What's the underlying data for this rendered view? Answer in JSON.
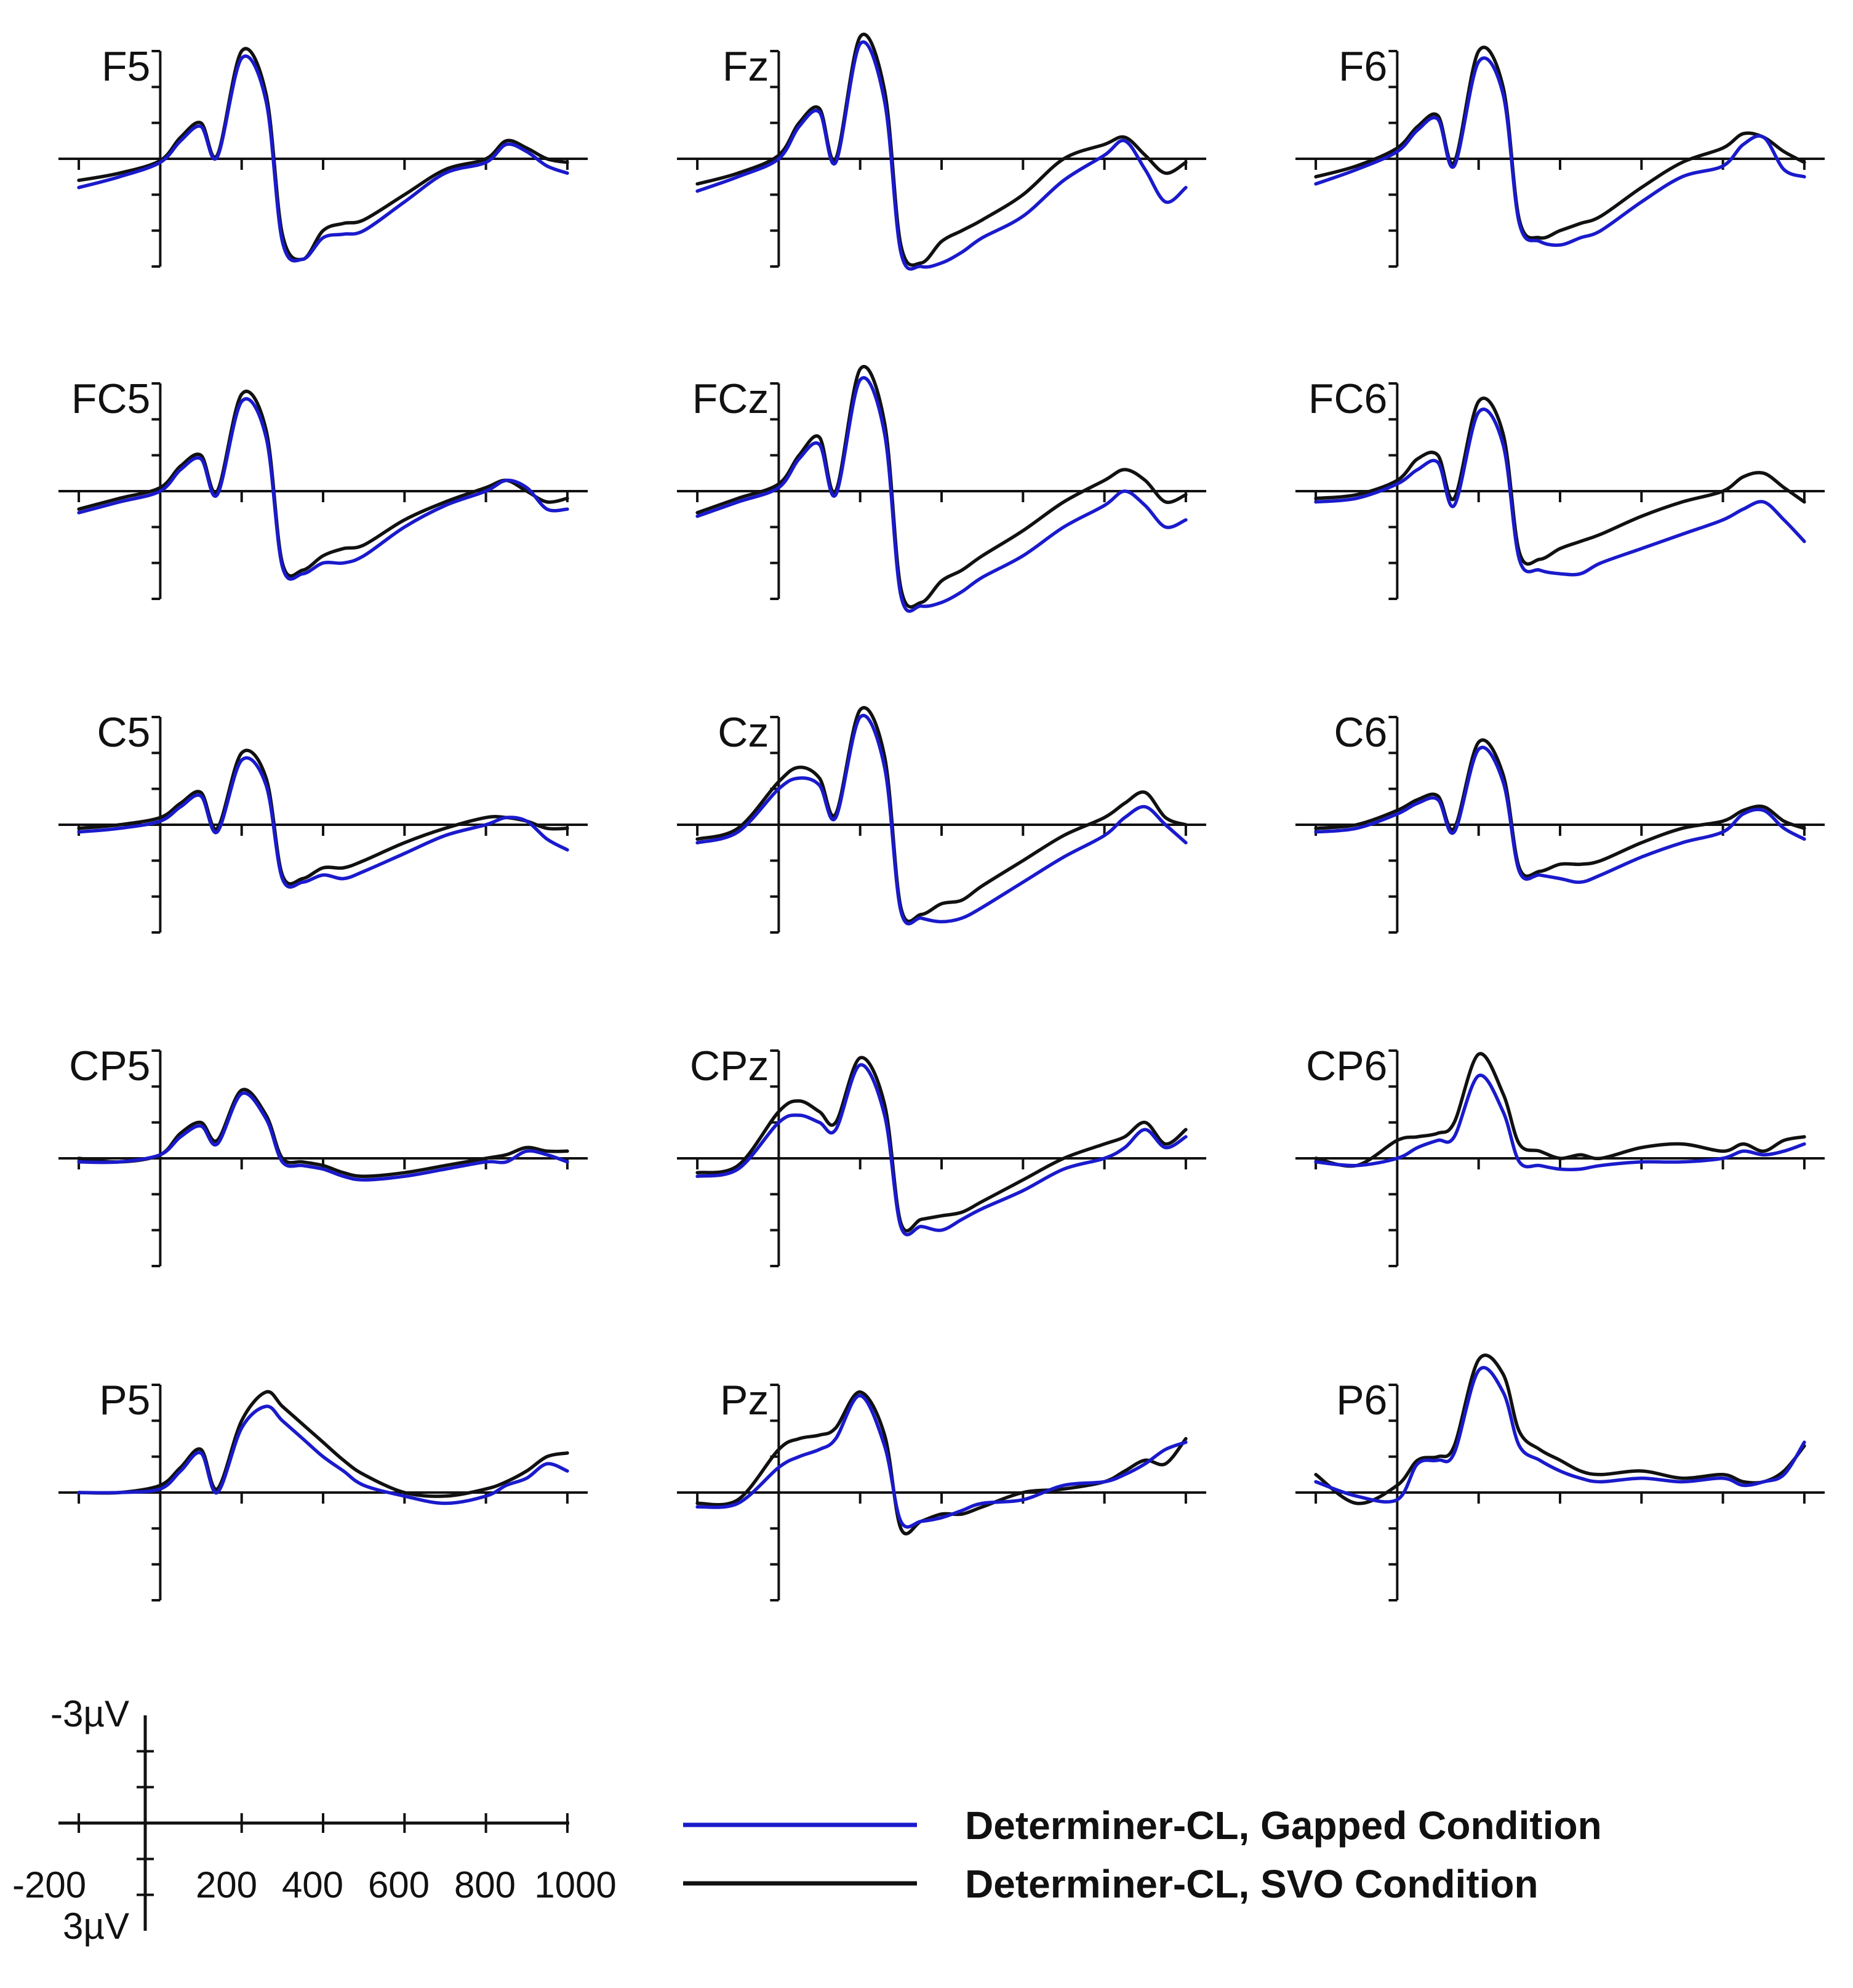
{
  "chart_data": {
    "type": "line",
    "x_unit": "ms",
    "y_unit": "µV",
    "negative_up": true,
    "xlim": [
      -250,
      1050
    ],
    "ylim": [
      -3,
      3
    ],
    "x_ticks": [
      -200,
      0,
      200,
      400,
      600,
      800,
      1000
    ],
    "scale_bar": {
      "y_top_label": "-3µV",
      "y_bottom_label": "3µV",
      "x_tick_labels": [
        "-200",
        "200",
        "400",
        "600",
        "800",
        "1000"
      ]
    },
    "legend": [
      {
        "label": "Determiner-CL, Gapped Condition",
        "color": "#1a1acc"
      },
      {
        "label": "Determiner-CL, SVO Condition",
        "color": "#111111"
      }
    ],
    "series_colors": {
      "gapped": "#1a1acc",
      "svo": "#111111"
    },
    "time": [
      -200,
      -100,
      0,
      50,
      100,
      140,
      200,
      260,
      300,
      350,
      400,
      450,
      500,
      600,
      700,
      800,
      850,
      900,
      950,
      1000
    ],
    "electrodes": [
      {
        "label": "F5",
        "gapped": [
          0.8,
          0.5,
          0.1,
          -0.5,
          -0.9,
          -0.05,
          -2.8,
          -1.6,
          2.3,
          2.8,
          2.2,
          2.1,
          2.0,
          1.2,
          0.4,
          0.1,
          -0.4,
          -0.2,
          0.2,
          0.4
        ],
        "svo": [
          0.6,
          0.4,
          0.05,
          -0.6,
          -1.0,
          -0.1,
          -3.0,
          -1.8,
          2.1,
          2.8,
          2.0,
          1.8,
          1.7,
          1.0,
          0.3,
          0.0,
          -0.5,
          -0.3,
          0.0,
          0.1
        ]
      },
      {
        "label": "Fz",
        "gapped": [
          0.9,
          0.5,
          0.0,
          -0.9,
          -1.3,
          0.1,
          -3.2,
          -1.6,
          2.6,
          3.0,
          2.9,
          2.6,
          2.2,
          1.6,
          0.6,
          -0.1,
          -0.5,
          0.3,
          1.2,
          0.8
        ],
        "svo": [
          0.7,
          0.4,
          -0.1,
          -1.0,
          -1.4,
          0.0,
          -3.4,
          -1.9,
          2.4,
          2.9,
          2.3,
          2.0,
          1.7,
          1.0,
          0.0,
          -0.4,
          -0.6,
          -0.1,
          0.4,
          0.1
        ]
      },
      {
        "label": "F6",
        "gapped": [
          0.7,
          0.3,
          -0.2,
          -0.8,
          -1.1,
          0.2,
          -2.7,
          -1.8,
          1.8,
          2.3,
          2.4,
          2.2,
          2.0,
          1.2,
          0.5,
          0.2,
          -0.4,
          -0.6,
          0.3,
          0.5
        ],
        "svo": [
          0.5,
          0.2,
          -0.3,
          -0.9,
          -1.2,
          0.1,
          -3.0,
          -2.0,
          1.7,
          2.2,
          2.0,
          1.8,
          1.6,
          0.8,
          0.1,
          -0.3,
          -0.7,
          -0.6,
          -0.2,
          0.1
        ]
      },
      {
        "label": "FC5",
        "gapped": [
          0.6,
          0.3,
          0.0,
          -0.6,
          -0.9,
          0.1,
          -2.5,
          -1.5,
          2.1,
          2.3,
          2.0,
          2.0,
          1.8,
          1.0,
          0.4,
          0.0,
          -0.3,
          -0.1,
          0.5,
          0.5
        ],
        "svo": [
          0.5,
          0.2,
          -0.1,
          -0.7,
          -1.0,
          0.0,
          -2.7,
          -1.7,
          2.0,
          2.2,
          1.8,
          1.6,
          1.5,
          0.8,
          0.3,
          -0.1,
          -0.3,
          0.0,
          0.3,
          0.2
        ]
      },
      {
        "label": "FC6",
        "gapped": [
          0.3,
          0.2,
          -0.2,
          -0.6,
          -0.8,
          0.4,
          -2.2,
          -1.3,
          1.9,
          2.2,
          2.3,
          2.3,
          2.0,
          1.6,
          1.2,
          0.8,
          0.5,
          0.3,
          0.8,
          1.4
        ],
        "svo": [
          0.2,
          0.1,
          -0.3,
          -0.9,
          -1.0,
          0.2,
          -2.5,
          -1.6,
          1.7,
          1.9,
          1.6,
          1.4,
          1.2,
          0.7,
          0.3,
          0.0,
          -0.4,
          -0.5,
          -0.1,
          0.3
        ]
      },
      {
        "label": "FCz",
        "gapped": [
          0.7,
          0.3,
          -0.1,
          -0.9,
          -1.3,
          0.1,
          -3.1,
          -1.6,
          2.9,
          3.2,
          3.1,
          2.8,
          2.4,
          1.8,
          1.0,
          0.4,
          0.0,
          0.4,
          1.0,
          0.8
        ],
        "svo": [
          0.6,
          0.2,
          -0.2,
          -1.0,
          -1.5,
          0.0,
          -3.4,
          -1.9,
          2.7,
          3.1,
          2.5,
          2.2,
          1.8,
          1.1,
          0.3,
          -0.3,
          -0.6,
          -0.3,
          0.3,
          0.1
        ]
      },
      {
        "label": "C5",
        "gapped": [
          0.2,
          0.1,
          -0.1,
          -0.5,
          -0.8,
          0.2,
          -1.8,
          -1.1,
          1.5,
          1.6,
          1.4,
          1.5,
          1.3,
          0.8,
          0.3,
          0.0,
          -0.2,
          -0.1,
          0.4,
          0.7
        ],
        "svo": [
          0.1,
          0.0,
          -0.2,
          -0.6,
          -0.9,
          0.1,
          -2.0,
          -1.3,
          1.4,
          1.5,
          1.2,
          1.2,
          1.0,
          0.5,
          0.1,
          -0.2,
          -0.2,
          -0.1,
          0.1,
          0.1
        ]
      },
      {
        "label": "C6",
        "gapped": [
          0.2,
          0.1,
          -0.3,
          -0.6,
          -0.7,
          0.2,
          -2.1,
          -1.2,
          1.3,
          1.4,
          1.5,
          1.6,
          1.4,
          0.9,
          0.5,
          0.2,
          -0.3,
          -0.4,
          0.1,
          0.4
        ],
        "svo": [
          0.1,
          0.0,
          -0.4,
          -0.7,
          -0.8,
          0.1,
          -2.3,
          -1.4,
          1.2,
          1.3,
          1.1,
          1.1,
          1.0,
          0.5,
          0.1,
          -0.1,
          -0.4,
          -0.5,
          -0.1,
          0.1
        ]
      },
      {
        "label": "Cz",
        "gapped": [
          0.5,
          0.2,
          -1.0,
          -1.3,
          -1.1,
          -0.2,
          -3.0,
          -1.6,
          2.4,
          2.6,
          2.7,
          2.6,
          2.3,
          1.6,
          0.9,
          0.3,
          -0.2,
          -0.5,
          0.0,
          0.5
        ],
        "svo": [
          0.4,
          0.1,
          -1.2,
          -1.6,
          -1.3,
          -0.3,
          -3.2,
          -1.9,
          2.3,
          2.5,
          2.2,
          2.1,
          1.7,
          1.0,
          0.3,
          -0.2,
          -0.6,
          -0.9,
          -0.2,
          0.0
        ]
      },
      {
        "label": "CP5",
        "gapped": [
          0.1,
          0.1,
          -0.1,
          -0.6,
          -0.9,
          -0.4,
          -1.8,
          -1.1,
          0.1,
          0.2,
          0.3,
          0.5,
          0.6,
          0.5,
          0.3,
          0.1,
          0.1,
          -0.2,
          -0.1,
          0.1
        ],
        "svo": [
          0.0,
          0.1,
          -0.1,
          -0.7,
          -1.0,
          -0.5,
          -1.9,
          -1.2,
          0.0,
          0.1,
          0.2,
          0.4,
          0.5,
          0.4,
          0.2,
          0.0,
          -0.1,
          -0.3,
          -0.2,
          -0.2
        ]
      },
      {
        "label": "CPz",
        "gapped": [
          0.5,
          0.3,
          -1.0,
          -1.2,
          -1.0,
          -0.8,
          -2.6,
          -1.2,
          1.9,
          1.9,
          2.0,
          1.7,
          1.4,
          0.9,
          0.3,
          0.0,
          -0.3,
          -0.8,
          -0.3,
          -0.6
        ],
        "svo": [
          0.4,
          0.2,
          -1.3,
          -1.6,
          -1.3,
          -1.0,
          -2.8,
          -1.5,
          1.8,
          1.7,
          1.6,
          1.5,
          1.2,
          0.6,
          0.0,
          -0.4,
          -0.6,
          -1.0,
          -0.4,
          -0.8
        ]
      },
      {
        "label": "CP6",
        "gapped": [
          0.1,
          0.2,
          0.0,
          -0.3,
          -0.5,
          -0.6,
          -2.3,
          -1.3,
          0.1,
          0.2,
          0.3,
          0.3,
          0.2,
          0.1,
          0.1,
          0.0,
          -0.2,
          -0.1,
          -0.2,
          -0.4
        ],
        "svo": [
          0.0,
          0.2,
          -0.5,
          -0.6,
          -0.7,
          -1.0,
          -2.9,
          -1.8,
          -0.4,
          -0.2,
          0.0,
          -0.1,
          0.0,
          -0.3,
          -0.4,
          -0.2,
          -0.4,
          -0.2,
          -0.5,
          -0.6
        ]
      },
      {
        "label": "P5",
        "gapped": [
          0.0,
          0.0,
          -0.1,
          -0.6,
          -1.1,
          0.0,
          -1.8,
          -2.4,
          -2.0,
          -1.5,
          -1.0,
          -0.6,
          -0.2,
          0.1,
          0.3,
          0.1,
          -0.2,
          -0.4,
          -0.8,
          -0.6
        ],
        "svo": [
          0.0,
          0.0,
          -0.2,
          -0.7,
          -1.2,
          -0.1,
          -2.0,
          -2.8,
          -2.4,
          -1.9,
          -1.4,
          -0.9,
          -0.5,
          0.0,
          0.1,
          -0.1,
          -0.3,
          -0.6,
          -1.0,
          -1.1
        ]
      },
      {
        "label": "Pz",
        "gapped": [
          0.4,
          0.3,
          -0.7,
          -1.0,
          -1.2,
          -1.5,
          -2.7,
          -1.3,
          0.8,
          0.8,
          0.7,
          0.5,
          0.3,
          0.2,
          -0.2,
          -0.3,
          -0.5,
          -0.8,
          -1.2,
          -1.4
        ],
        "svo": [
          0.3,
          0.2,
          -1.2,
          -1.5,
          -1.6,
          -1.8,
          -2.8,
          -1.6,
          1.0,
          0.8,
          0.6,
          0.6,
          0.4,
          0.0,
          -0.1,
          -0.3,
          -0.6,
          -0.9,
          -0.8,
          -1.5
        ]
      },
      {
        "label": "P6",
        "gapped": [
          -0.3,
          0.1,
          0.2,
          -0.8,
          -0.9,
          -1.1,
          -3.4,
          -2.8,
          -1.3,
          -0.9,
          -0.6,
          -0.4,
          -0.3,
          -0.4,
          -0.3,
          -0.4,
          -0.2,
          -0.3,
          -0.5,
          -1.4
        ],
        "svo": [
          -0.5,
          0.3,
          -0.2,
          -0.9,
          -1.0,
          -1.3,
          -3.7,
          -3.3,
          -1.7,
          -1.2,
          -0.9,
          -0.6,
          -0.5,
          -0.6,
          -0.4,
          -0.5,
          -0.3,
          -0.3,
          -0.6,
          -1.3
        ]
      }
    ]
  }
}
